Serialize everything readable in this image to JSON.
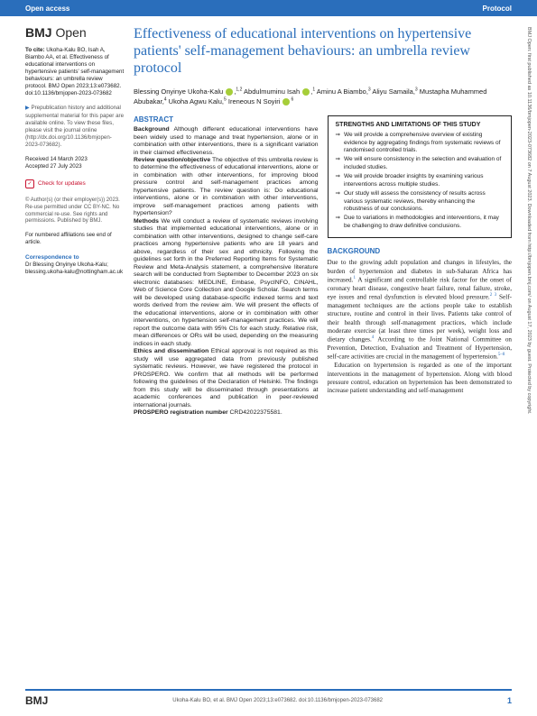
{
  "topbar": {
    "left": "Open access",
    "right": "Protocol"
  },
  "journal": {
    "name": "BMJ",
    "sub": "Open"
  },
  "title": "Effectiveness of educational interventions on hypertensive patients' self-management behaviours: an umbrella review protocol",
  "authors": {
    "a1": "Blessing Onyinye Ukoha-Kalu",
    "s1": "1,2",
    "a2": "Abdulmuminu Isah",
    "s2": "1",
    "a3": "Aminu A Biambo",
    "s3": "3",
    "a4": "Aliyu Samaila",
    "s4": "3",
    "a5": "Mustapha Muhammed Abubakar",
    "s5": "4",
    "a6": "Ukoha Agwu Kalu",
    "s6": "5",
    "a7": "Ireneous N Soyiri",
    "s7": "6"
  },
  "cite": {
    "lead": "To cite:",
    "text": "Ukoha-Kalu BO, Isah A, Biambo AA, et al. Effectiveness of educational interventions on hypertensive patients' self-management behaviours: an umbrella review protocol. BMJ Open 2023;13:e073682. doi:10.1136/bmjopen-2023-073682"
  },
  "supp": "Prepublication history and additional supplemental material for this paper are available online. To view these files, please visit the journal online (http://dx.doi.org/10.1136/bmjopen-2023-073682).",
  "dates": {
    "rec": "Received 14 March 2023",
    "acc": "Accepted 27 July 2023"
  },
  "check": "Check for updates",
  "copyright": "© Author(s) (or their employer(s)) 2023. Re-use permitted under CC BY-NC. No commercial re-use. See rights and permissions. Published by BMJ.",
  "affil": "For numbered affiliations see end of article.",
  "corr": {
    "h": "Correspondence to",
    "name": "Dr Blessing Onyinye Ukoha-Kalu;",
    "email": "blessing.ukoha-kalu@nottingham.ac.uk"
  },
  "abstract": {
    "h": "ABSTRACT",
    "bg_h": "Background",
    "bg": " Although different educational interventions have been widely used to manage and treat hypertension, alone or in combination with other interventions, there is a significant variation in their claimed effectiveness.",
    "rq_h": "Review question/objective",
    "rq": " The objective of this umbrella review is to determine the effectiveness of educational interventions, alone or in combination with other interventions, for improving blood pressure control and self-management practices among hypertensive patients. The review question is: Do educational interventions, alone or in combination with other interventions, improve self-management practices among patients with hypertension?",
    "me_h": "Methods",
    "me": " We will conduct a review of systematic reviews involving studies that implemented educational interventions, alone or in combination with other interventions, designed to change self-care practices among hypertensive patients who are 18 years and above, regardless of their sex and ethnicity. Following the guidelines set forth in the Preferred Reporting Items for Systematic Review and Meta-Analysis statement, a comprehensive literature search will be conducted from September to December 2023 on six electronic databases: MEDLINE, Embase, PsycINFO, CINAHL, Web of Science Core Collection and Google Scholar. Search terms will be developed using database-specific indexed terms and text words derived from the review aim. We will present the effects of the educational interventions, alone or in combination with other interventions, on hypertension self-management practices. We will report the outcome data with 95% CIs for each study. Relative risk, mean differences or ORs will be used, depending on the measuring indices in each study.",
    "et_h": "Ethics and dissemination",
    "et": " Ethical approval is not required as this study will use aggregated data from previously published systematic reviews. However, we have registered the protocol in PROSPERO. We confirm that all methods will be performed following the guidelines of the Declaration of Helsinki. The findings from this study will be disseminated through presentations at academic conferences and publication in peer-reviewed international journals.",
    "reg_h": "PROSPERO registration number",
    "reg": " CRD42022375581."
  },
  "box": {
    "h": "STRENGTHS AND LIMITATIONS OF THIS STUDY",
    "items": [
      "We will provide a comprehensive overview of existing evidence by aggregating findings from systematic reviews of randomised controlled trials.",
      "We will ensure consistency in the selection and evaluation of included studies.",
      "We will provide broader insights by examining various interventions across multiple studies.",
      "Our study will assess the consistency of results across various systematic reviews, thereby enhancing the robustness of our conclusions.",
      "Due to variations in methodologies and interventions, it may be challenging to draw definitive conclusions."
    ]
  },
  "background": {
    "h": "BACKGROUND",
    "p1": "Due to the growing adult population and changes in lifestyles, the burden of hypertension and diabetes in sub-Saharan Africa has increased.",
    "p2": " A significant and controllable risk factor for the onset of coronary heart disease, congestive heart failure, renal failure, stroke, eye issues and renal dysfunction is elevated blood pressure.",
    "p3": " Self-management techniques are the actions people take to establish structure, routine and control in their lives. Patients take control of their health through self-management practices, which include moderate exercise (at least three times per week), weight loss and dietary changes.",
    "p4": " According to the Joint National Committee on Prevention, Detection, Evaluation and Treatment of Hypertension, self-care activities are crucial in the management of hypertension.",
    "p5": "Education on hypertension is regarded as one of the important interventions in the management of hypertension. Along with blood pressure control, education on hypertension has been demonstrated to increase patient understanding and self-management"
  },
  "footer": {
    "logo": "BMJ",
    "cite": "Ukoha-Kalu BO, et al. BMJ Open 2023;13:e073682. doi:10.1136/bmjopen-2023-073682",
    "page": "1"
  },
  "sidebar": "BMJ Open: first published as 10.1136/bmjopen-2023-073682 on 7 August 2023. Downloaded from http://bmjopen.bmj.com/ on August 17, 2023 by guest. Protected by copyright."
}
